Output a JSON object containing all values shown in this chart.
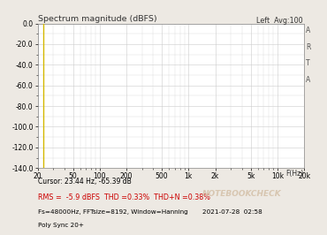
{
  "title": "Spectrum magnitude (dBFS)",
  "top_right_label": "Left  Avg:100",
  "right_label_chars": [
    "A",
    "R",
    "T",
    "A"
  ],
  "xlabel": "F(Hz)",
  "ylim": [
    -140,
    0
  ],
  "xlim_log": [
    20,
    20000
  ],
  "yticks": [
    0.0,
    -20.0,
    -40.0,
    -60.0,
    -80.0,
    -100.0,
    -120.0,
    -140.0
  ],
  "xtick_labels": [
    "20",
    "50",
    "100",
    "200",
    "500",
    "1k",
    "2k",
    "5k",
    "10k",
    "20k"
  ],
  "xtick_values": [
    20,
    50,
    100,
    200,
    500,
    1000,
    2000,
    5000,
    10000,
    20000
  ],
  "cursor_label": "Cursor: 23.44 Hz, -65.39 dB",
  "rms_label": "RMS =  -5.9 dBFS  THD =0.33%  THD+N =0.38%",
  "fs_label": "Fs=48000Hz, FFTsize=8192, Window=Hanning",
  "poly_label": "Poly Sync 20+",
  "date_label": "2021-07-28  02:58",
  "background_color": "#ede9e3",
  "plot_bg_color": "#ffffff",
  "grid_color": "#cccccc",
  "line_color": "#111111",
  "yellow_line_x": 23.44,
  "cursor_color": "#d4b800",
  "rms_color": "#cc0000",
  "cursor_text_color": "#000000",
  "fs_text_color": "#000000",
  "noise_seed": 12345,
  "noise_amplitude": 1.5
}
